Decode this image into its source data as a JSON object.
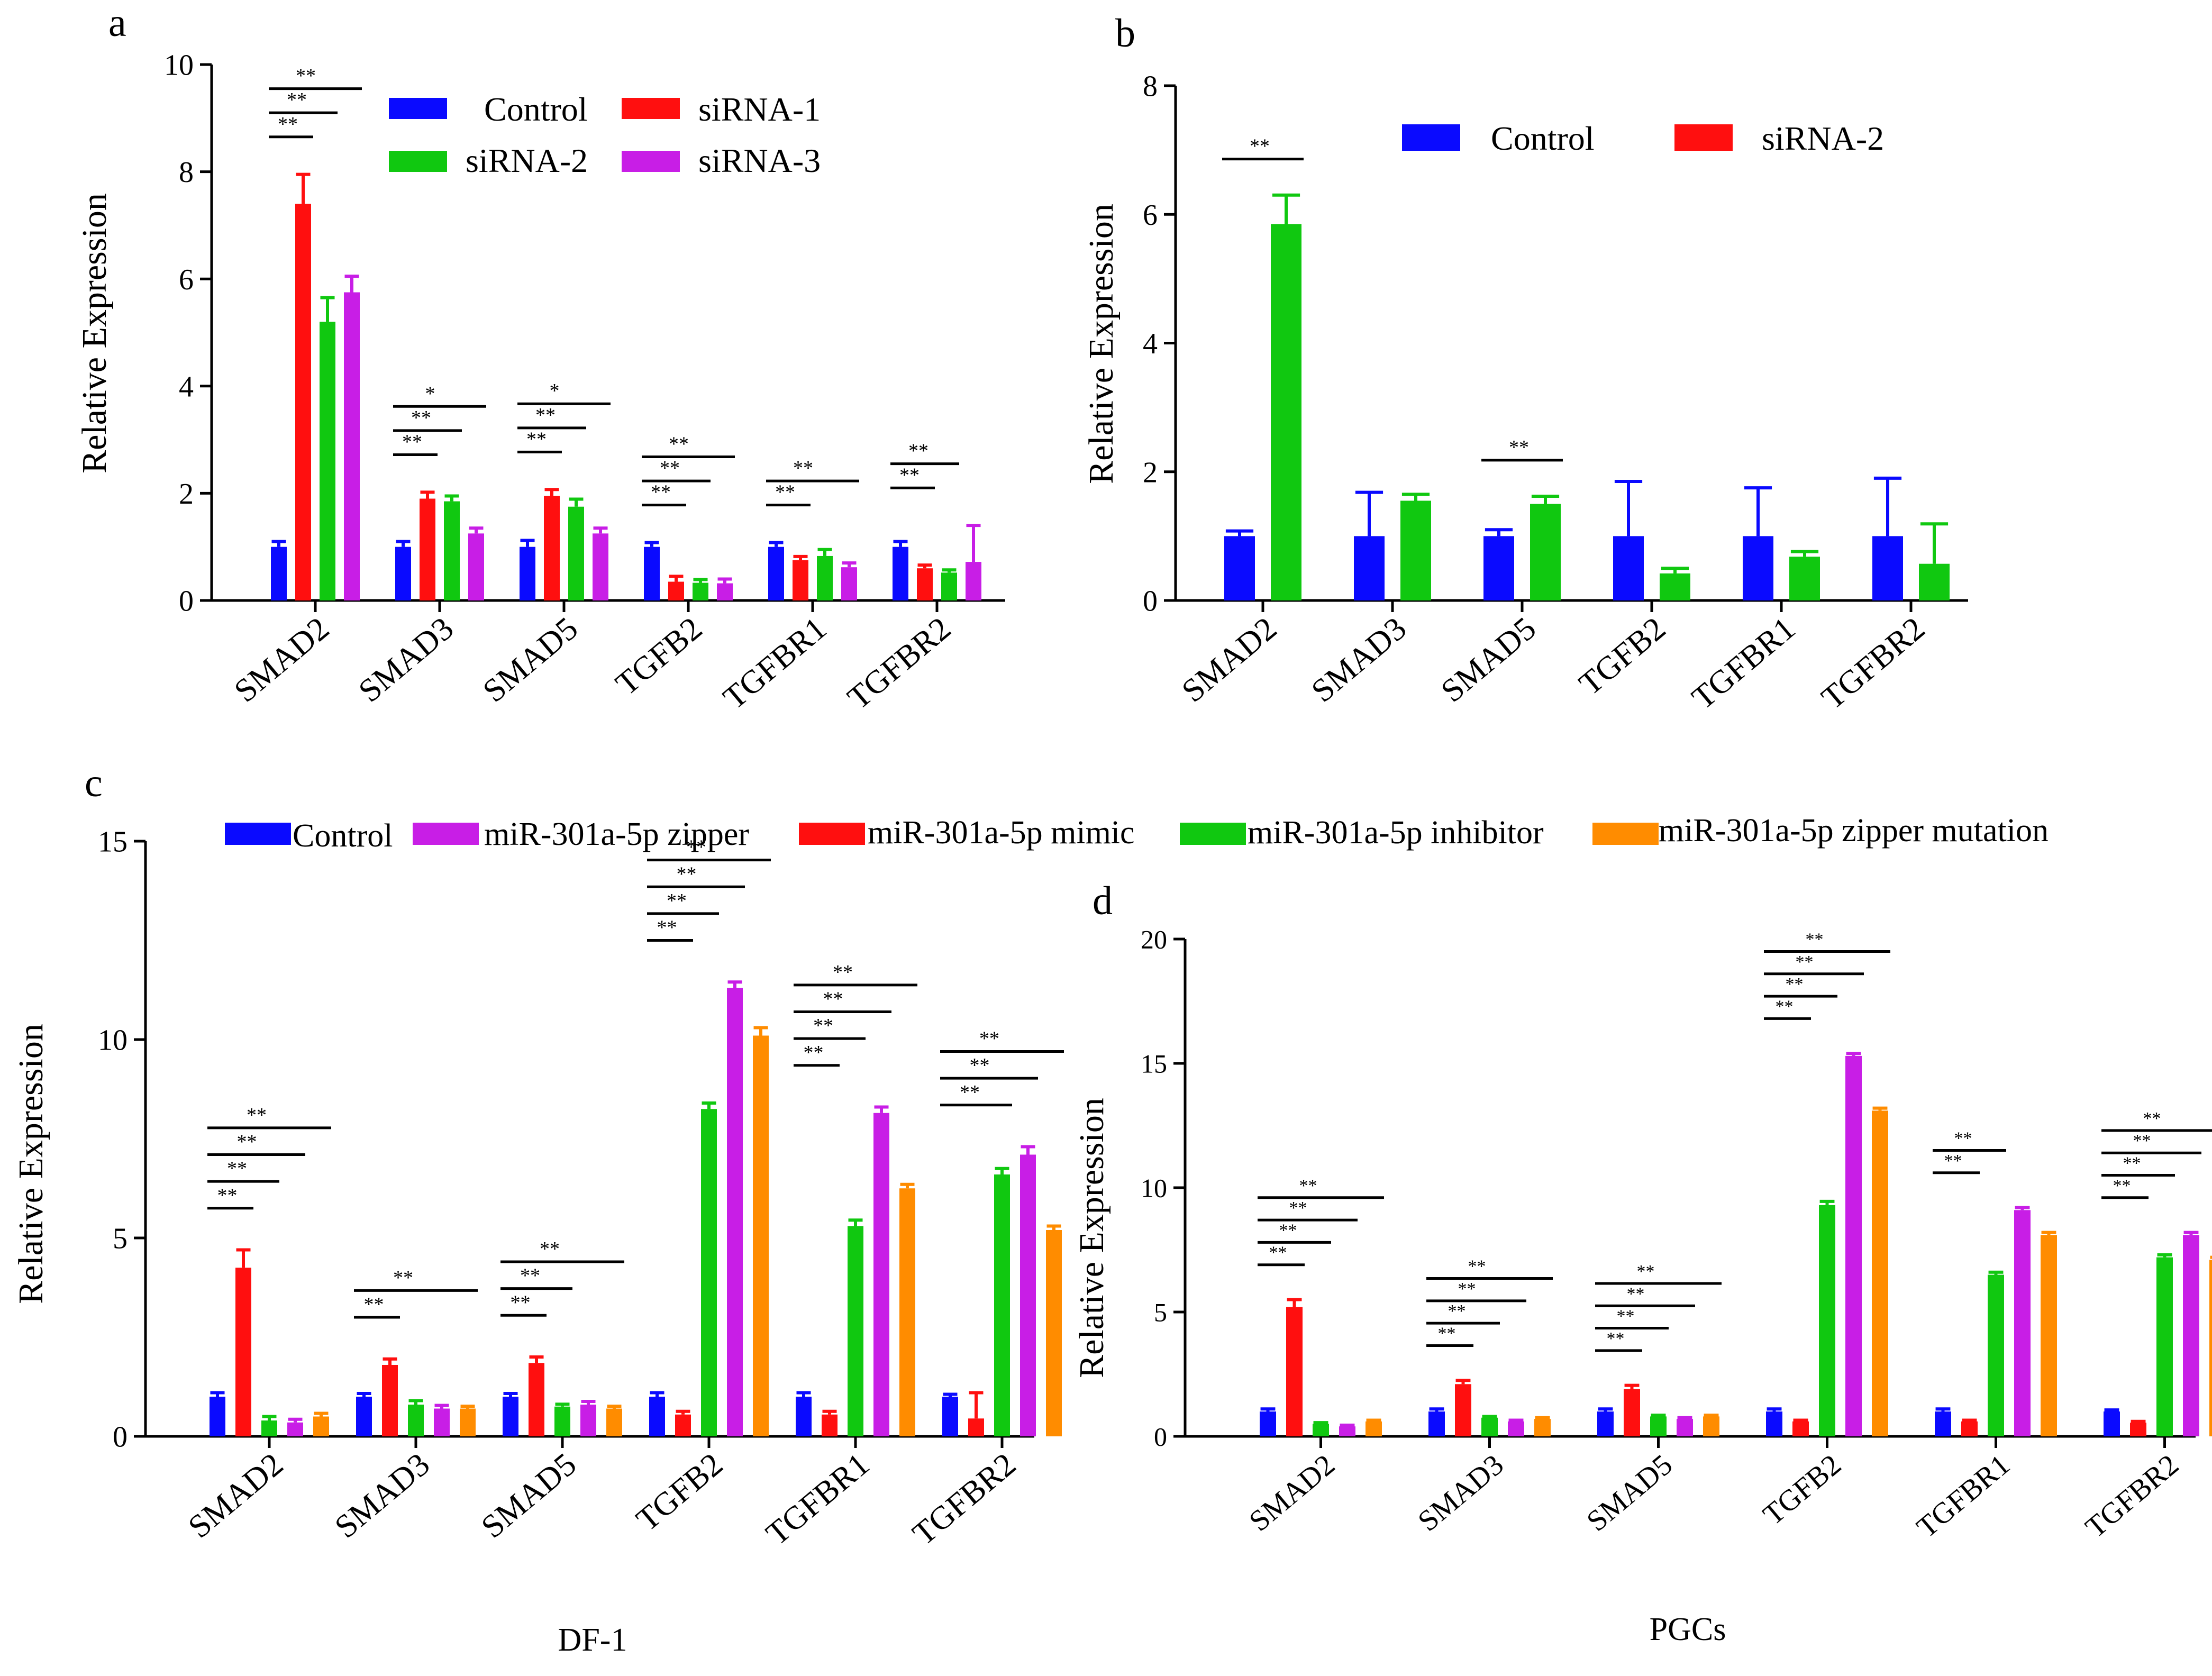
{
  "colors": {
    "Control": "#0a0aff",
    "siRNA-1": "#ff0f0f",
    "siRNA-2": "#10c810",
    "siRNA-3": "#c81ee6",
    "miR-301a-5p zipper": "#c81ee6",
    "miR-301a-5p mimic": "#ff0f0f",
    "miR-301a-5p inhibitor": "#10c810",
    "miR-301a-5p zipper mutation": "#ff8c00"
  },
  "shared_legend": {
    "entries": [
      "Control",
      "miR-301a-5p zipper",
      "miR-301a-5p mimic",
      "miR-301a-5p inhibitor",
      "miR-301a-5p zipper mutation"
    ]
  },
  "chart_data": [
    {
      "panel": "a",
      "type": "bar",
      "title": "",
      "xlabel": "",
      "ylabel": "Relative Expression",
      "ylim": [
        0,
        10
      ],
      "yticks": [
        0,
        2,
        4,
        6,
        8,
        10
      ],
      "categories": [
        "SMAD2",
        "SMAD3",
        "SMAD5",
        "TGFB2",
        "TGFBR1",
        "TGFBR2"
      ],
      "legend": [
        "Control",
        "siRNA-1",
        "siRNA-2",
        "siRNA-3"
      ],
      "series": [
        {
          "name": "Control",
          "values": [
            1.0,
            1.0,
            1.0,
            1.0,
            1.0,
            1.0
          ],
          "errors": [
            0.1,
            0.1,
            0.12,
            0.08,
            0.08,
            0.1
          ]
        },
        {
          "name": "siRNA-1",
          "values": [
            7.4,
            1.9,
            1.95,
            0.35,
            0.75,
            0.6
          ],
          "errors": [
            0.55,
            0.12,
            0.12,
            0.1,
            0.07,
            0.06
          ]
        },
        {
          "name": "siRNA-2",
          "values": [
            5.2,
            1.85,
            1.75,
            0.33,
            0.83,
            0.52
          ],
          "errors": [
            0.45,
            0.1,
            0.14,
            0.06,
            0.12,
            0.05
          ]
        },
        {
          "name": "siRNA-3",
          "values": [
            5.75,
            1.25,
            1.25,
            0.32,
            0.62,
            0.72
          ],
          "errors": [
            0.3,
            0.1,
            0.1,
            0.08,
            0.08,
            0.68
          ]
        }
      ],
      "annotations": [
        {
          "cat": 0,
          "from": 0,
          "to": 1,
          "level": 0,
          "text": "**"
        },
        {
          "cat": 0,
          "from": 0,
          "to": 2,
          "level": 1,
          "text": "**"
        },
        {
          "cat": 0,
          "from": 0,
          "to": 3,
          "level": 2,
          "text": "**"
        },
        {
          "cat": 1,
          "from": 0,
          "to": 1,
          "level": 0,
          "text": "**"
        },
        {
          "cat": 1,
          "from": 0,
          "to": 2,
          "level": 1,
          "text": "**"
        },
        {
          "cat": 1,
          "from": 0,
          "to": 3,
          "level": 2,
          "text": "*"
        },
        {
          "cat": 2,
          "from": 0,
          "to": 1,
          "level": 0,
          "text": "**"
        },
        {
          "cat": 2,
          "from": 0,
          "to": 2,
          "level": 1,
          "text": "**"
        },
        {
          "cat": 2,
          "from": 0,
          "to": 3,
          "level": 2,
          "text": "*"
        },
        {
          "cat": 3,
          "from": 0,
          "to": 1,
          "level": 0,
          "text": "**"
        },
        {
          "cat": 3,
          "from": 0,
          "to": 2,
          "level": 1,
          "text": "**"
        },
        {
          "cat": 3,
          "from": 0,
          "to": 3,
          "level": 2,
          "text": "**"
        },
        {
          "cat": 4,
          "from": 0,
          "to": 1,
          "level": 0,
          "text": "**"
        },
        {
          "cat": 4,
          "from": 0,
          "to": 3,
          "level": 1,
          "text": "**"
        },
        {
          "cat": 5,
          "from": 0,
          "to": 1,
          "level": 0,
          "text": "**"
        },
        {
          "cat": 5,
          "from": 0,
          "to": 2,
          "level": 1,
          "text": "**"
        }
      ]
    },
    {
      "panel": "b",
      "type": "bar",
      "title": "",
      "xlabel": "",
      "ylabel": "Relative Expression",
      "ylim": [
        0,
        8
      ],
      "yticks": [
        0,
        2,
        4,
        6,
        8
      ],
      "categories": [
        "SMAD2",
        "SMAD3",
        "SMAD5",
        "TGFB2",
        "TGFBR1",
        "TGFBR2"
      ],
      "legend": [
        "Control",
        "siRNA-2"
      ],
      "series": [
        {
          "name": "Control",
          "values": [
            1.0,
            1.0,
            1.0,
            1.0,
            1.0,
            1.0
          ],
          "errors": [
            0.08,
            0.68,
            0.1,
            0.85,
            0.75,
            0.9
          ]
        },
        {
          "name": "siRNA-2",
          "values": [
            5.85,
            1.55,
            1.5,
            0.42,
            0.68,
            0.57
          ],
          "errors": [
            0.45,
            0.1,
            0.12,
            0.08,
            0.08,
            0.62
          ]
        }
      ],
      "annotations": [
        {
          "cat": 0,
          "from": 0,
          "to": 1,
          "level": 0,
          "text": "**"
        },
        {
          "cat": 2,
          "from": 0,
          "to": 1,
          "level": 0,
          "text": "**"
        }
      ]
    },
    {
      "panel": "c",
      "type": "bar",
      "title": "",
      "xlabel": "DF-1",
      "ylabel": "Relative Expression",
      "ylim": [
        0,
        15
      ],
      "yticks": [
        0,
        5,
        10,
        15
      ],
      "categories": [
        "SMAD2",
        "SMAD3",
        "SMAD5",
        "TGFB2",
        "TGFBR1",
        "TGFBR2"
      ],
      "legend": [
        "Control",
        "miR-301a-5p zipper",
        "miR-301a-5p mimic",
        "miR-301a-5p inhibitor",
        "miR-301a-5p zipper mutation"
      ],
      "series": [
        {
          "name": "Control",
          "values": [
            1.0,
            1.0,
            1.0,
            1.0,
            1.0,
            1.0
          ],
          "errors": [
            0.1,
            0.08,
            0.08,
            0.1,
            0.1,
            0.06
          ]
        },
        {
          "name": "miR-301a-5p mimic",
          "values": [
            4.25,
            1.8,
            1.85,
            0.55,
            0.55,
            0.45
          ],
          "errors": [
            0.45,
            0.15,
            0.15,
            0.08,
            0.08,
            0.65
          ]
        },
        {
          "name": "miR-301a-5p inhibitor",
          "values": [
            0.4,
            0.8,
            0.75,
            8.25,
            5.3,
            6.6
          ],
          "errors": [
            0.1,
            0.1,
            0.06,
            0.15,
            0.15,
            0.15
          ]
        },
        {
          "name": "miR-301a-5p zipper",
          "values": [
            0.35,
            0.7,
            0.8,
            11.3,
            8.15,
            7.1
          ],
          "errors": [
            0.08,
            0.08,
            0.08,
            0.15,
            0.15,
            0.2
          ]
        },
        {
          "name": "miR-301a-5p zipper mutation",
          "values": [
            0.5,
            0.7,
            0.7,
            10.1,
            6.25,
            5.2
          ],
          "errors": [
            0.08,
            0.06,
            0.06,
            0.2,
            0.1,
            0.1
          ]
        }
      ],
      "annotations": [
        {
          "cat": 0,
          "from": 0,
          "to": 1,
          "level": 0,
          "text": "**"
        },
        {
          "cat": 0,
          "from": 0,
          "to": 2,
          "level": 1,
          "text": "**"
        },
        {
          "cat": 0,
          "from": 0,
          "to": 3,
          "level": 2,
          "text": "**"
        },
        {
          "cat": 0,
          "from": 0,
          "to": 4,
          "level": 3,
          "text": "**"
        },
        {
          "cat": 1,
          "from": 0,
          "to": 1,
          "level": 0,
          "text": "**"
        },
        {
          "cat": 1,
          "from": 0,
          "to": 4,
          "level": 1,
          "text": "**"
        },
        {
          "cat": 2,
          "from": 0,
          "to": 1,
          "level": 0,
          "text": "**"
        },
        {
          "cat": 2,
          "from": 0,
          "to": 2,
          "level": 1,
          "text": "**"
        },
        {
          "cat": 2,
          "from": 0,
          "to": 4,
          "level": 2,
          "text": "**"
        },
        {
          "cat": 3,
          "from": 0,
          "to": 1,
          "level": 0,
          "text": "**"
        },
        {
          "cat": 3,
          "from": 0,
          "to": 2,
          "level": 1,
          "text": "**"
        },
        {
          "cat": 3,
          "from": 0,
          "to": 3,
          "level": 2,
          "text": "**"
        },
        {
          "cat": 3,
          "from": 0,
          "to": 4,
          "level": 3,
          "text": "**"
        },
        {
          "cat": 4,
          "from": 0,
          "to": 1,
          "level": 0,
          "text": "**"
        },
        {
          "cat": 4,
          "from": 0,
          "to": 2,
          "level": 1,
          "text": "**"
        },
        {
          "cat": 4,
          "from": 0,
          "to": 3,
          "level": 2,
          "text": "**"
        },
        {
          "cat": 4,
          "from": 0,
          "to": 4,
          "level": 3,
          "text": "**"
        },
        {
          "cat": 5,
          "from": 0,
          "to": 2,
          "level": 0,
          "text": "**"
        },
        {
          "cat": 5,
          "from": 0,
          "to": 3,
          "level": 1,
          "text": "**"
        },
        {
          "cat": 5,
          "from": 0,
          "to": 4,
          "level": 2,
          "text": "**"
        }
      ]
    },
    {
      "panel": "d",
      "type": "bar",
      "title": "",
      "xlabel": "PGCs",
      "ylabel": "Relative Expression",
      "ylim": [
        0,
        20
      ],
      "yticks": [
        0,
        5,
        10,
        15,
        20
      ],
      "categories": [
        "SMAD2",
        "SMAD3",
        "SMAD5",
        "TGFB2",
        "TGFBR1",
        "TGFBR2"
      ],
      "legend": [
        "Control",
        "miR-301a-5p zipper",
        "miR-301a-5p mimic",
        "miR-301a-5p inhibitor",
        "miR-301a-5p zipper mutation"
      ],
      "series": [
        {
          "name": "Control",
          "values": [
            1.0,
            1.0,
            1.0,
            1.0,
            1.0,
            1.0
          ],
          "errors": [
            0.1,
            0.1,
            0.1,
            0.1,
            0.1,
            0.06
          ]
        },
        {
          "name": "miR-301a-5p mimic",
          "values": [
            5.2,
            2.1,
            1.9,
            0.6,
            0.6,
            0.55
          ],
          "errors": [
            0.3,
            0.15,
            0.15,
            0.05,
            0.05,
            0.05
          ]
        },
        {
          "name": "miR-301a-5p inhibitor",
          "values": [
            0.5,
            0.75,
            0.8,
            9.3,
            6.5,
            7.2
          ],
          "errors": [
            0.05,
            0.05,
            0.05,
            0.15,
            0.1,
            0.1
          ]
        },
        {
          "name": "miR-301a-5p zipper",
          "values": [
            0.4,
            0.6,
            0.7,
            15.3,
            9.1,
            8.1
          ],
          "errors": [
            0.05,
            0.05,
            0.05,
            0.1,
            0.1,
            0.1
          ]
        },
        {
          "name": "miR-301a-5p zipper mutation",
          "values": [
            0.6,
            0.7,
            0.8,
            13.1,
            8.1,
            7.1
          ],
          "errors": [
            0.05,
            0.05,
            0.05,
            0.1,
            0.1,
            0.1
          ]
        }
      ],
      "annotations": [
        {
          "cat": 0,
          "from": 0,
          "to": 1,
          "level": 0,
          "text": "**"
        },
        {
          "cat": 0,
          "from": 0,
          "to": 2,
          "level": 1,
          "text": "**"
        },
        {
          "cat": 0,
          "from": 0,
          "to": 3,
          "level": 2,
          "text": "**"
        },
        {
          "cat": 0,
          "from": 0,
          "to": 4,
          "level": 3,
          "text": "**"
        },
        {
          "cat": 1,
          "from": 0,
          "to": 1,
          "level": 0,
          "text": "**"
        },
        {
          "cat": 1,
          "from": 0,
          "to": 2,
          "level": 1,
          "text": "**"
        },
        {
          "cat": 1,
          "from": 0,
          "to": 3,
          "level": 2,
          "text": "**"
        },
        {
          "cat": 1,
          "from": 0,
          "to": 4,
          "level": 3,
          "text": "**"
        },
        {
          "cat": 2,
          "from": 0,
          "to": 1,
          "level": 0,
          "text": "**"
        },
        {
          "cat": 2,
          "from": 0,
          "to": 2,
          "level": 1,
          "text": "**"
        },
        {
          "cat": 2,
          "from": 0,
          "to": 3,
          "level": 2,
          "text": "**"
        },
        {
          "cat": 2,
          "from": 0,
          "to": 4,
          "level": 3,
          "text": "**"
        },
        {
          "cat": 3,
          "from": 0,
          "to": 1,
          "level": 0,
          "text": "**"
        },
        {
          "cat": 3,
          "from": 0,
          "to": 2,
          "level": 1,
          "text": "**"
        },
        {
          "cat": 3,
          "from": 0,
          "to": 3,
          "level": 2,
          "text": "**"
        },
        {
          "cat": 3,
          "from": 0,
          "to": 4,
          "level": 3,
          "text": "**"
        },
        {
          "cat": 4,
          "from": 0,
          "to": 1,
          "level": 0,
          "text": "**"
        },
        {
          "cat": 4,
          "from": 0,
          "to": 2,
          "level": 1,
          "text": "**"
        },
        {
          "cat": 5,
          "from": 0,
          "to": 1,
          "level": 0,
          "text": "**"
        },
        {
          "cat": 5,
          "from": 0,
          "to": 2,
          "level": 1,
          "text": "**"
        },
        {
          "cat": 5,
          "from": 0,
          "to": 3,
          "level": 2,
          "text": "**"
        },
        {
          "cat": 5,
          "from": 0,
          "to": 4,
          "level": 3,
          "text": "**"
        }
      ]
    }
  ]
}
